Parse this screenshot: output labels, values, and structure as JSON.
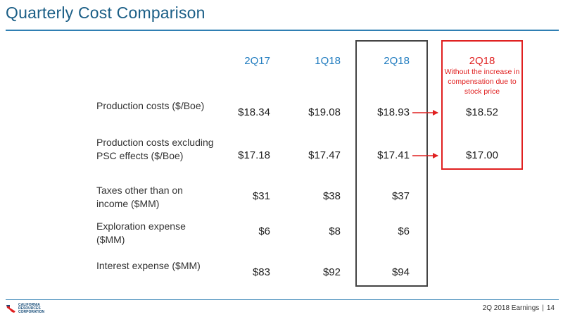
{
  "slide": {
    "title": "Quarterly Cost Comparison",
    "footer": {
      "text": "2Q 2018 Earnings",
      "page": "14"
    },
    "logo": {
      "icon": "california-map-icon",
      "lines": [
        "CALIFORNIA",
        "RESOURCES",
        "CORPORATION"
      ]
    }
  },
  "table": {
    "columns": [
      "2Q17",
      "1Q18",
      "2Q18"
    ],
    "adjusted_column": {
      "label": "2Q18",
      "note": "Without the increase in compensation due to stock price"
    },
    "rows": [
      {
        "label": "Production costs ($/Boe)",
        "values": [
          "$18.34",
          "$19.08",
          "$18.93"
        ],
        "adjusted": "$18.52"
      },
      {
        "label": "Production costs excluding PSC effects ($/Boe)",
        "values": [
          "$17.18",
          "$17.47",
          "$17.41"
        ],
        "adjusted": "$17.00"
      },
      {
        "label": "Taxes other than on income ($MM)",
        "values": [
          "$31",
          "$38",
          "$37"
        ],
        "adjusted": ""
      },
      {
        "label": "Exploration expense ($MM)",
        "values": [
          "$6",
          "$8",
          "$6"
        ],
        "adjusted": ""
      },
      {
        "label": "Interest expense ($MM)",
        "values": [
          "$83",
          "$92",
          "$94"
        ],
        "adjusted": ""
      }
    ]
  },
  "colors": {
    "title": "#1a5e86",
    "header": "#1f7bbf",
    "highlight": "#e02020",
    "box": "#444444"
  }
}
